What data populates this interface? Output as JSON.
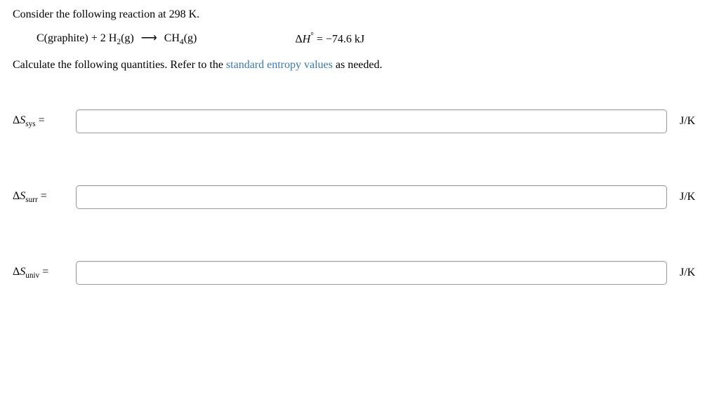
{
  "intro": "Consider the following reaction at 298 K.",
  "reaction": {
    "left": "C(graphite) + 2 H",
    "h2_sub": "2",
    "h2_g": "(g)",
    "arrow": "⟶",
    "ch": "CH",
    "ch_sub": "4",
    "ch_g": "(g)"
  },
  "deltaH": {
    "label": "Δ",
    "H": "H",
    "deg": "°",
    "eq": " = ",
    "value": "−74.6 kJ"
  },
  "calc": {
    "prefix": "Calculate the following quantities. Refer to the ",
    "link": "standard entropy values",
    "suffix": " as needed."
  },
  "rows": {
    "sys": {
      "delta": "Δ",
      "S": "S",
      "sub": "sys",
      "eq": " =",
      "unit": "J/K"
    },
    "surr": {
      "delta": "Δ",
      "S": "S",
      "sub": "surr",
      "eq": " =",
      "unit": "J/K"
    },
    "univ": {
      "delta": "Δ",
      "S": "S",
      "sub": "univ",
      "eq": " =",
      "unit": "J/K"
    }
  }
}
